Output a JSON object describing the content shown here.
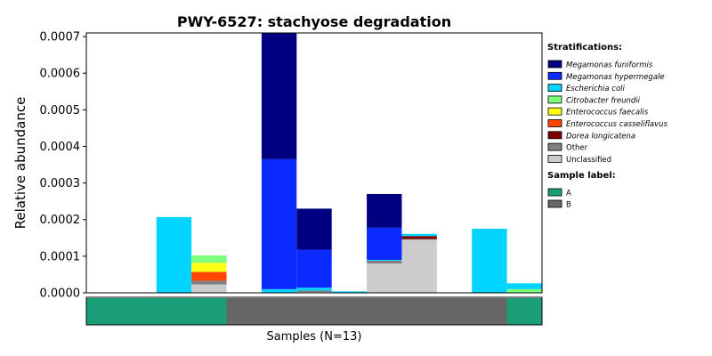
{
  "chart_data": {
    "type": "bar",
    "stacked": true,
    "title": "PWY-6527: stachyose degradation",
    "ylabel": "Relative abundance",
    "xlabel": "Samples (N=13)",
    "ylim": [
      0,
      0.00071
    ],
    "yticks": [
      "0.0000",
      "0.0001",
      "0.0002",
      "0.0003",
      "0.0004",
      "0.0005",
      "0.0006",
      "0.0007"
    ],
    "ytick_values": [
      0,
      0.0001,
      0.0002,
      0.0003,
      0.0004,
      0.0005,
      0.0006,
      0.0007
    ],
    "grid": false,
    "legend_placement": "right",
    "sample_count": 13,
    "stratifications_title": "Stratifications:",
    "sample_label_title": "Sample label:",
    "series": [
      {
        "name": "Megamonas funiformis",
        "color": "#000080",
        "values": [
          0,
          0,
          0,
          0,
          0,
          0.000345,
          0.000112,
          0,
          9.2e-05,
          0,
          0,
          0,
          0
        ]
      },
      {
        "name": "Megamonas hypermegale",
        "color": "#0a2aff",
        "values": [
          0,
          0,
          0,
          0,
          0,
          0.000355,
          0.000104,
          0,
          8.8e-05,
          0,
          0,
          0,
          0
        ]
      },
      {
        "name": "Escherichia coli",
        "color": "#00d4ff",
        "values": [
          0,
          0,
          0.000207,
          0,
          0,
          1e-05,
          8e-06,
          4e-06,
          2e-06,
          6e-06,
          0,
          0.000175,
          1.6e-05
        ]
      },
      {
        "name": "Citrobacter freundii",
        "color": "#7dff7a",
        "values": [
          0,
          0,
          0,
          2e-05,
          0,
          0,
          0,
          0,
          0,
          0,
          0,
          0,
          1e-05
        ]
      },
      {
        "name": "Enterococcus faecalis",
        "color": "#ffff14",
        "values": [
          0,
          0,
          0,
          2.5e-05,
          0,
          0,
          0,
          0,
          0,
          0,
          0,
          0,
          0
        ]
      },
      {
        "name": "Enterococcus casseliflavus",
        "color": "#ff4500",
        "values": [
          0,
          0,
          0,
          2.4e-05,
          0,
          0,
          0,
          0,
          0,
          0,
          0,
          0,
          0
        ]
      },
      {
        "name": "Dorea longicatena",
        "color": "#800000",
        "values": [
          0,
          0,
          0,
          0,
          0,
          0,
          0,
          0,
          0,
          8e-06,
          0,
          0,
          0
        ]
      },
      {
        "name": "Other",
        "color": "#808080",
        "values": [
          0,
          0,
          0,
          1e-05,
          0,
          0,
          4e-06,
          0,
          8e-06,
          2e-06,
          0,
          0,
          0
        ]
      },
      {
        "name": "Unclassified",
        "color": "#cccccc",
        "values": [
          0,
          0,
          0,
          2.3e-05,
          0,
          0,
          2e-06,
          0,
          8e-05,
          0.000145,
          0,
          0,
          0
        ]
      }
    ],
    "sample_labels": [
      "A",
      "A",
      "A",
      "A",
      "B",
      "B",
      "B",
      "B",
      "B",
      "B",
      "B",
      "B",
      "A"
    ],
    "sample_label_legend": [
      {
        "name": "A",
        "color": "#1a9e77"
      },
      {
        "name": "B",
        "color": "#666666"
      }
    ]
  }
}
